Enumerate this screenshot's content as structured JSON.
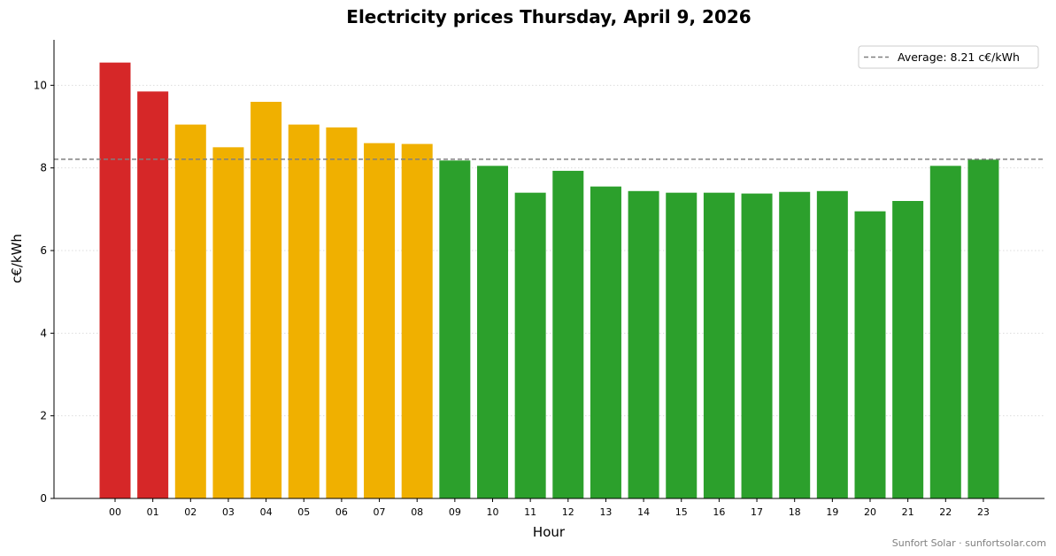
{
  "chart_data": {
    "type": "bar",
    "title": "Electricity prices Thursday, April 9, 2026",
    "xlabel": "Hour",
    "ylabel": "c€/kWh",
    "categories": [
      "00",
      "01",
      "02",
      "03",
      "04",
      "05",
      "06",
      "07",
      "08",
      "09",
      "10",
      "11",
      "12",
      "13",
      "14",
      "15",
      "16",
      "17",
      "18",
      "19",
      "20",
      "21",
      "22",
      "23"
    ],
    "values": [
      10.55,
      9.85,
      9.05,
      8.5,
      9.6,
      9.05,
      8.98,
      8.6,
      8.58,
      8.18,
      8.05,
      7.4,
      7.93,
      7.55,
      7.44,
      7.4,
      7.4,
      7.38,
      7.42,
      7.44,
      6.95,
      7.2,
      8.05,
      8.2
    ],
    "bar_colors": [
      "#d62728",
      "#d62728",
      "#f0b000",
      "#f0b000",
      "#f0b000",
      "#f0b000",
      "#f0b000",
      "#f0b000",
      "#f0b000",
      "#2ca02c",
      "#2ca02c",
      "#2ca02c",
      "#2ca02c",
      "#2ca02c",
      "#2ca02c",
      "#2ca02c",
      "#2ca02c",
      "#2ca02c",
      "#2ca02c",
      "#2ca02c",
      "#2ca02c",
      "#2ca02c",
      "#2ca02c",
      "#2ca02c"
    ],
    "average": 8.21,
    "ylim": [
      0,
      11.1
    ],
    "yticks": [
      0,
      2,
      4,
      6,
      8,
      10
    ],
    "grid": "horizontal dotted",
    "legend": {
      "label": "Average: 8.21 c€/kWh",
      "placement": "top-right",
      "line_color": "#808080",
      "line_style": "dashed"
    }
  },
  "footer": "Sunfort Solar · sunfortsolar.com"
}
